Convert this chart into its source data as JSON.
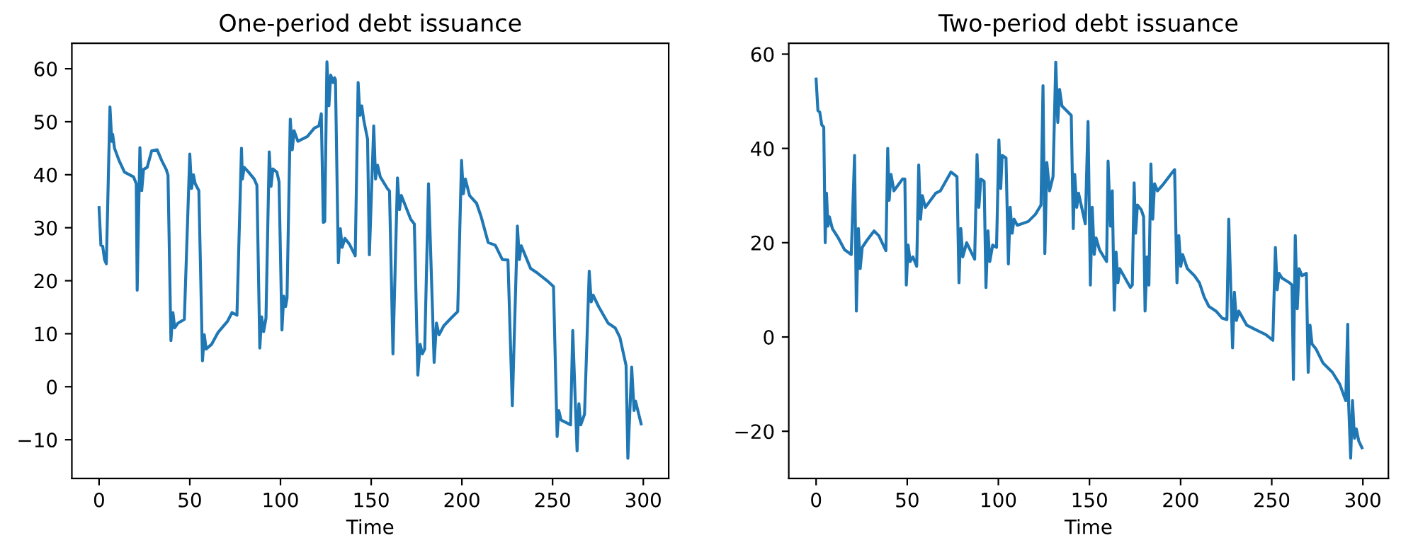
{
  "chart_data": [
    {
      "type": "line",
      "title": "One-period debt issuance",
      "xlabel": "Time",
      "xlim": [
        -15,
        314
      ],
      "ylim": [
        -17.3,
        64.8
      ],
      "xticks": [
        0,
        50,
        100,
        150,
        200,
        250,
        300
      ],
      "yticks": [
        {
          "value": -10,
          "label": "−10"
        },
        0,
        10,
        20,
        30,
        40,
        50,
        60
      ],
      "grid": false,
      "marker": "none",
      "line_style": "solid",
      "series": [
        {
          "color": "#1f77b4",
          "x": [
            0,
            1,
            2,
            3,
            4,
            6,
            7,
            7.5,
            8.5,
            11,
            14,
            19,
            20.5,
            21,
            22.5,
            23.5,
            24.5,
            26.5,
            29,
            32,
            34.5,
            37,
            38,
            39.6,
            40.7,
            41.7,
            43.5,
            47,
            50,
            51,
            52,
            53,
            55,
            57,
            58,
            59,
            62,
            65.5,
            70.7,
            73.3,
            76,
            78.5,
            79,
            80,
            82.4,
            85.5,
            87,
            88.6,
            89.6,
            90.7,
            92,
            93.8,
            94.8,
            95.8,
            98,
            99.2,
            100.8,
            101.8,
            102.8,
            103.6,
            105.4,
            106.5,
            107.5,
            109.6,
            114.8,
            118.7,
            121.2,
            122.5,
            123.6,
            124.4,
            125.6,
            126.7,
            127.7,
            129,
            129.8,
            130.3,
            131.9,
            133,
            134,
            135.5,
            138,
            141.2,
            142.8,
            143.8,
            144.8,
            145.9,
            148,
            149,
            151.4,
            152.4,
            153.5,
            155,
            158.9,
            160.1,
            162,
            164.5,
            165.6,
            166.6,
            171.8,
            173.8,
            175.7,
            177,
            178.2,
            179.5,
            181.6,
            184.7,
            186,
            187.4,
            190,
            193.9,
            197.7,
            199.8,
            200.8,
            201.9,
            204.2,
            208.1,
            210.6,
            214.5,
            218.4,
            222.3,
            225.4,
            227.8,
            230.6,
            231.7,
            232.7,
            237.9,
            241.8,
            247,
            250.5,
            252.5,
            253.4,
            254.7,
            259.9,
            261.1,
            263.5,
            264.5,
            265.5,
            267.6,
            270.2,
            271.3,
            272.3,
            275.4,
            280.6,
            284.5,
            287.1,
            290.5,
            291.5,
            293.6,
            294.9,
            295.7,
            298.8
          ],
          "values": [
            33.8,
            26.7,
            26.5,
            24,
            23.2,
            52.8,
            46.3,
            47.6,
            45,
            42.7,
            40.5,
            39.6,
            38.3,
            18.2,
            45.1,
            37,
            41,
            41.4,
            44.5,
            44.7,
            42.7,
            41,
            39.9,
            8.7,
            14,
            11.1,
            12,
            12.7,
            43.9,
            37.4,
            40,
            38.3,
            37,
            4.9,
            9.8,
            7.1,
            8,
            10.2,
            12.3,
            14,
            13.5,
            45,
            39.2,
            41.4,
            40.5,
            39.2,
            38,
            7.3,
            13.2,
            10.4,
            12.9,
            44.3,
            37.8,
            41.1,
            40.5,
            38.7,
            10.7,
            17.1,
            15.1,
            16.7,
            50.5,
            44.7,
            48.3,
            46.3,
            47.2,
            48.8,
            49.2,
            51.5,
            31,
            31.2,
            61.3,
            53,
            58.8,
            57.4,
            58.3,
            57.9,
            23.4,
            29.8,
            26.3,
            28,
            26.9,
            24.7,
            57.4,
            51.2,
            53,
            50.3,
            46.7,
            24.9,
            49.2,
            39.2,
            41.8,
            39.6,
            37.4,
            36.9,
            6.2,
            39.4,
            33.4,
            36.1,
            31.6,
            30.7,
            2.2,
            8,
            6.2,
            7.1,
            38.3,
            4.6,
            12,
            9.8,
            11.5,
            12.9,
            14.2,
            42.7,
            36.4,
            39.2,
            36.1,
            34.6,
            32.1,
            27.2,
            26.7,
            24,
            23.9,
            -3.6,
            30.3,
            24,
            26.6,
            22.3,
            21.4,
            20,
            18.9,
            -9.4,
            -4.5,
            -6.3,
            -7.2,
            10.6,
            -12.1,
            -3.2,
            -7.2,
            -5.2,
            21.8,
            16,
            17.3,
            15.1,
            12,
            11.1,
            9.3,
            4,
            -13.5,
            3.7,
            -4.5,
            -2.7,
            -7
          ]
        }
      ]
    },
    {
      "type": "line",
      "title": "Two-period debt issuance",
      "xlabel": "Time",
      "xlim": [
        -15,
        314
      ],
      "ylim": [
        -30,
        62.3
      ],
      "xticks": [
        0,
        50,
        100,
        150,
        200,
        250,
        300
      ],
      "yticks": [
        {
          "value": -20,
          "label": "−20"
        },
        0,
        20,
        40,
        60
      ],
      "grid": false,
      "marker": "none",
      "line_style": "solid",
      "series": [
        {
          "color": "#1f77b4",
          "x": [
            0,
            1,
            2,
            3.1,
            4.2,
            5,
            5.7,
            6.5,
            7.3,
            8.9,
            12.2,
            15.6,
            19.3,
            21.1,
            22.1,
            23.2,
            24.2,
            25.3,
            27.9,
            31.8,
            34.4,
            38.3,
            39.3,
            40.1,
            41.1,
            42.7,
            47.4,
            48.7,
            49.5,
            50.5,
            51.6,
            53.1,
            55.2,
            56.3,
            57.3,
            58.3,
            59.9,
            65.6,
            68.2,
            74,
            77.3,
            78.4,
            79.4,
            80.5,
            82.6,
            87,
            88.3,
            89.3,
            90.4,
            92.2,
            93.2,
            94.3,
            95.3,
            96.9,
            99,
            100.3,
            101.3,
            102.1,
            104.2,
            105.5,
            106.5,
            107.6,
            108.6,
            110.4,
            116.4,
            120.3,
            123.4,
            124.5,
            125.5,
            126.6,
            128.1,
            130,
            131.5,
            132.6,
            133.6,
            134.9,
            140,
            141.1,
            141.9,
            143,
            144,
            147.7,
            149.2,
            150.5,
            151.5,
            152.6,
            153.6,
            155.5,
            159.4,
            160.2,
            161.5,
            162.5,
            163.6,
            164.6,
            165.6,
            166.6,
            172.4,
            173.5,
            174.5,
            175.3,
            176.3,
            178.4,
            179.7,
            180.5,
            181.6,
            182.6,
            183.7,
            184.7,
            185.7,
            187.3,
            190.7,
            194.6,
            196.7,
            198,
            199,
            200.1,
            201.1,
            203.7,
            207.6,
            210.3,
            212.9,
            215.5,
            219.4,
            222.8,
            225.4,
            226.4,
            228.5,
            229.5,
            230.6,
            231.9,
            236.3,
            241.5,
            246.7,
            250.6,
            252,
            253,
            254,
            255.6,
            259.8,
            261.1,
            261.9,
            262.9,
            264,
            265,
            266.6,
            269,
            270,
            271,
            272.1,
            274.2,
            278.1,
            283.3,
            287.3,
            290.6,
            291.7,
            292.2,
            293.3,
            294.3,
            295.4,
            296.4,
            297.7,
            299.5
          ],
          "values": [
            54.7,
            48,
            47.7,
            45,
            44.5,
            20,
            30.5,
            23.5,
            25.5,
            23,
            21,
            18.5,
            17.5,
            38.5,
            5.5,
            23,
            14.5,
            19,
            20.5,
            22.5,
            21.5,
            18.3,
            40,
            29,
            34.5,
            31,
            33.5,
            33.5,
            11,
            19.5,
            16,
            17,
            15,
            36.5,
            25,
            30,
            27.5,
            30.5,
            31,
            35,
            34,
            11.5,
            23,
            17,
            20,
            16.5,
            38.7,
            27.5,
            33.5,
            33,
            10.5,
            22.5,
            16,
            19.5,
            19,
            41.8,
            31.5,
            38.5,
            38,
            15.5,
            27.5,
            22,
            25,
            23.7,
            24.5,
            26,
            28,
            53.3,
            17.7,
            37,
            31,
            34,
            58.3,
            45.5,
            52.5,
            49,
            47,
            23,
            34.5,
            27.5,
            30.5,
            24,
            45.7,
            11,
            27.5,
            17.5,
            21,
            18.5,
            16,
            37.3,
            23.5,
            31,
            5.7,
            18,
            11.5,
            14.5,
            10.5,
            11,
            32.7,
            22,
            28,
            27,
            25.5,
            5.5,
            17,
            11,
            36.7,
            25,
            32.5,
            31,
            32.5,
            34.5,
            35.5,
            11.5,
            21.5,
            15,
            17.5,
            14.5,
            13,
            11.5,
            8.5,
            6.5,
            5.5,
            4,
            3.7,
            25,
            -2.3,
            9.5,
            3.5,
            5.5,
            2.5,
            1.5,
            0.5,
            -0.7,
            19,
            10,
            13.5,
            12.5,
            11.5,
            11,
            -9,
            21.5,
            6,
            14.5,
            13,
            13.5,
            -7.5,
            2.5,
            -1.5,
            -2.5,
            -5.5,
            -7.5,
            -10,
            -13.5,
            2.7,
            -14.3,
            -25.7,
            -13.5,
            -21.5,
            -19.5,
            -22,
            -23.5
          ]
        }
      ]
    }
  ]
}
